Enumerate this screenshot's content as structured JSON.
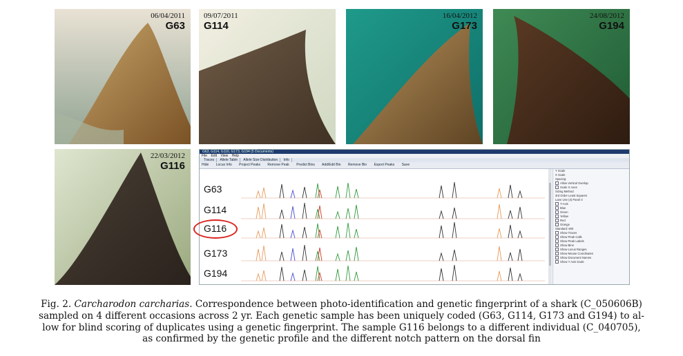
{
  "photos": [
    {
      "id": "G63",
      "date": "06/04/2011"
    },
    {
      "id": "G114",
      "date": "09/07/2011"
    },
    {
      "id": "G173",
      "date": "16/04/2012"
    },
    {
      "id": "G194",
      "date": "24/08/2012"
    },
    {
      "id": "G116",
      "date": "22/03/2012"
    }
  ],
  "software": {
    "window_title": "G63, G114, G116, G173, G194 (5 Documents)",
    "menu": [
      "File",
      "Edit",
      "View",
      "Help"
    ],
    "tabs": [
      "Traces",
      "Allele Table",
      "Allele Size Distribution",
      "Info"
    ],
    "toolbar": [
      "Hide",
      "Locus Info",
      "Project Peaks",
      "Remove Peak",
      "Predict Bins",
      "Add/Edit Bin",
      "Remove Bin",
      "Export Peaks",
      "Save"
    ],
    "samples": [
      "G63",
      "G114",
      "G116",
      "G173",
      "G194"
    ],
    "side_panel": [
      "Y Scale",
      "X Scale",
      "Spacing:",
      "Allow Vertical Overlap",
      "Scale X Axes",
      "Sizing Method",
      "3rd Order Least Squares",
      "Lane Use (4) Panel 3",
      "Y-Axis",
      "Blue",
      "Green",
      "Yellow",
      "Red",
      "Orange",
      "Standard: 600",
      "Show Traces",
      "Show Peak Calls",
      "Show Peak Labels",
      "Show Bins",
      "Show Locus Ranges",
      "Show Mouse Coordinates",
      "Show Document Names",
      "Show Y Axis Scale"
    ],
    "trace_colors": {
      "orange": "#e89a5a",
      "blue": "#4a4fd0",
      "green": "#2f9a3a",
      "black": "#333333",
      "red": "#d23a2a"
    }
  },
  "caption": {
    "fig_label": "Fig. 2.",
    "species": "Carcharodon carcharias",
    "line1_rest": ". Correspondence between photo-identification and genetic fingerprint of a shark (C_050606B)",
    "line2": "sampled on 4 different occasions across 2 yr. Each genetic sample has been uniquely coded (G63, G114, G173 and G194) to al-",
    "line3": "low for blind scoring of duplicates using a genetic fingerprint. The sample G116 belongs to a different individual (C_040705),",
    "line4": "as confirmed by the genetic profile and the different notch pattern on the dorsal fin"
  }
}
